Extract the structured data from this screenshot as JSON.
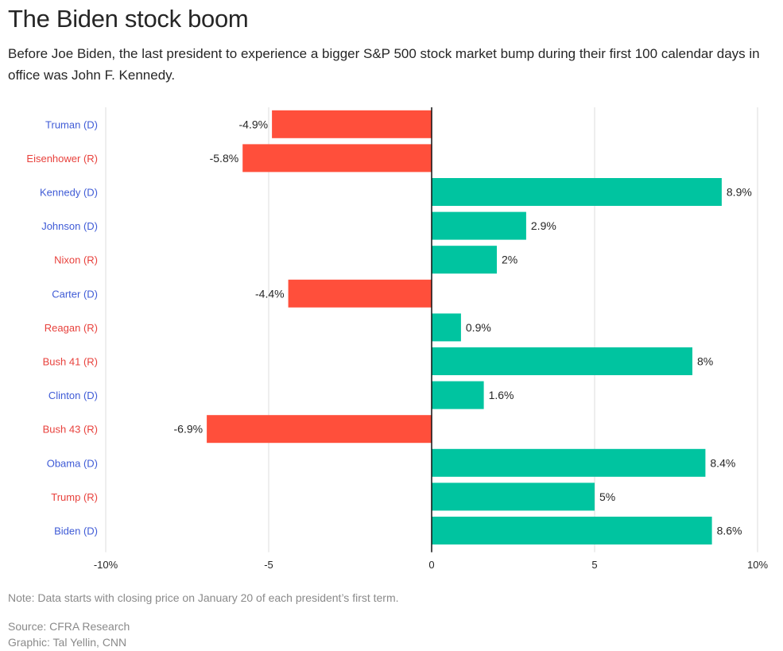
{
  "header": {
    "title": "The Biden stock boom",
    "subtitle": "Before Joe Biden, the last president to experience a bigger S&P 500 stock market bump during their first 100 calendar days in office was John F. Kennedy."
  },
  "footer": {
    "note": "Note: Data starts with closing price on January 20 of each president’s first term.",
    "source": "Source: CFRA Research",
    "credit": "Graphic: Tal Yellin, CNN"
  },
  "colors": {
    "positive": "#00c4a0",
    "negative": "#ff4f3b",
    "democrat": "#3f5bd6",
    "republican": "#e8413c",
    "grid": "#dddddd",
    "axis": "#111111",
    "text": "#262626"
  },
  "chart_data": {
    "type": "bar",
    "orientation": "horizontal",
    "title": "The Biden stock boom",
    "xlabel": "",
    "ylabel": "",
    "xlim": [
      -10,
      10
    ],
    "xticks": [
      -10,
      -5,
      0,
      5,
      10
    ],
    "xtick_labels": [
      "-10%",
      "-5",
      "0",
      "5",
      "10%"
    ],
    "grid": true,
    "categories": [
      "Truman (D)",
      "Eisenhower (R)",
      "Kennedy (D)",
      "Johnson (D)",
      "Nixon (R)",
      "Carter (D)",
      "Reagan (R)",
      "Bush 41 (R)",
      "Clinton (D)",
      "Bush 43 (R)",
      "Obama (D)",
      "Trump (R)",
      "Biden (D)"
    ],
    "party": [
      "D",
      "R",
      "D",
      "D",
      "R",
      "D",
      "R",
      "R",
      "D",
      "R",
      "D",
      "R",
      "D"
    ],
    "values": [
      -4.9,
      -5.8,
      8.9,
      2.9,
      2.0,
      -4.4,
      0.9,
      8.0,
      1.6,
      -6.9,
      8.4,
      5.0,
      8.6
    ],
    "value_labels": [
      "-4.9%",
      "-5.8%",
      "8.9%",
      "2.9%",
      "2%",
      "-4.4%",
      "0.9%",
      "8%",
      "1.6%",
      "-6.9%",
      "8.4%",
      "5%",
      "8.6%"
    ]
  }
}
